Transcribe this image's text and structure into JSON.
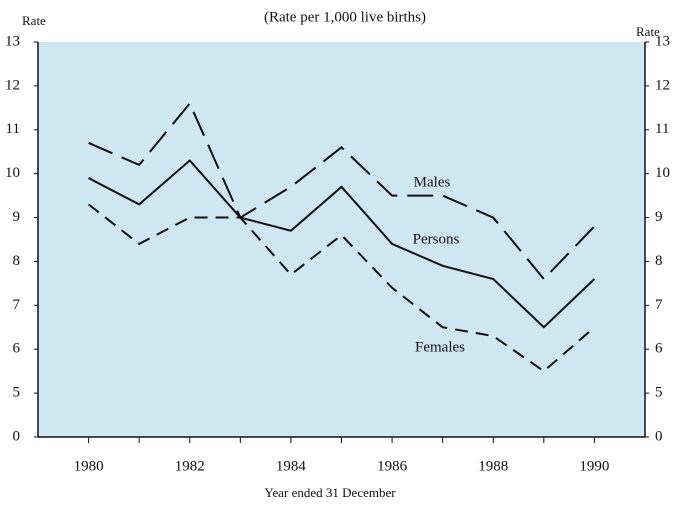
{
  "chart_data": {
    "type": "line",
    "title": "(Rate per 1,000 live births)",
    "ylabel": "Rate",
    "y2label": "Rate",
    "xlabel": "Year ended 31 December",
    "x": [
      1980,
      1981,
      1982,
      1983,
      1984,
      1985,
      1986,
      1987,
      1988,
      1989,
      1990
    ],
    "series": [
      {
        "name": "Males",
        "color": "#111111",
        "dash": "long",
        "values": [
          10.7,
          10.2,
          11.6,
          9.0,
          9.7,
          10.6,
          9.5,
          9.5,
          9.0,
          7.6,
          8.8
        ]
      },
      {
        "name": "Persons",
        "color": "#111111",
        "dash": "solid",
        "values": [
          9.9,
          9.3,
          10.3,
          9.0,
          8.7,
          9.7,
          8.4,
          7.9,
          7.6,
          6.5,
          7.6
        ]
      },
      {
        "name": "Females",
        "color": "#111111",
        "dash": "short",
        "values": [
          9.3,
          8.4,
          9.0,
          9.0,
          7.7,
          8.6,
          7.4,
          6.5,
          6.3,
          5.5,
          6.5
        ]
      }
    ],
    "xlim": [
      1979,
      1991
    ],
    "xticks": [
      1980,
      1982,
      1984,
      1986,
      1988,
      1990
    ],
    "xminorticks": [
      1981,
      1983,
      1985,
      1987,
      1989
    ],
    "ylim": [
      0,
      13
    ],
    "ybreak": [
      0,
      5
    ],
    "yticks": [
      0,
      5,
      6,
      7,
      8,
      9,
      10,
      11,
      12,
      13
    ],
    "background": "#cfe7f3"
  }
}
